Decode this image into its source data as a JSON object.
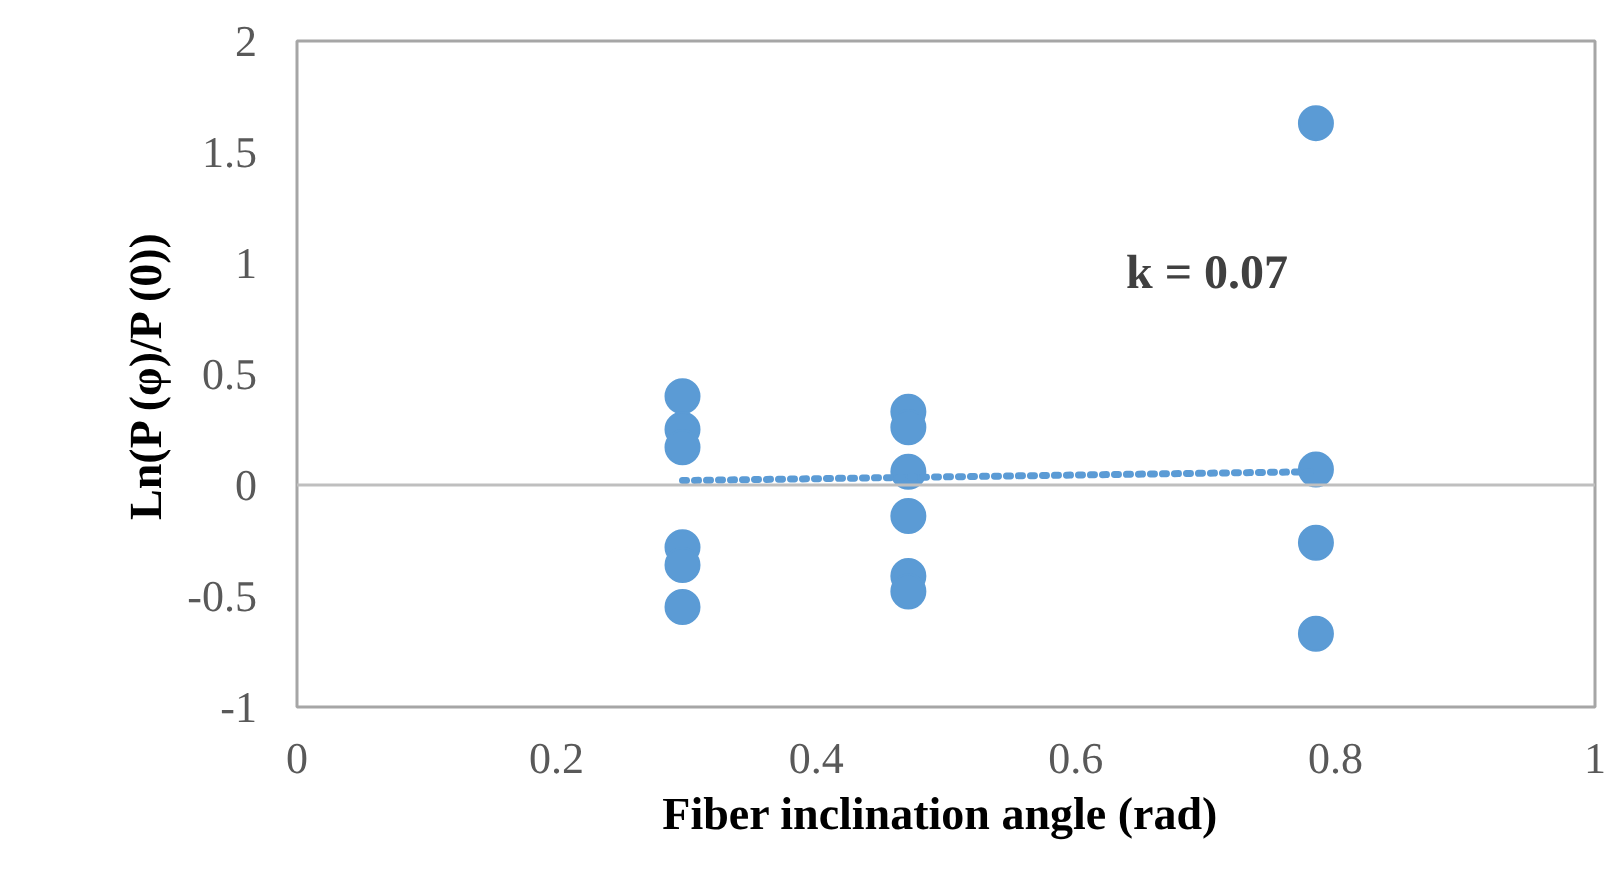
{
  "chart_data": {
    "type": "scatter",
    "xlabel": "Fiber inclination angle  (rad)",
    "ylabel": "Ln(P (φ)/P (0))",
    "xlim": [
      0,
      1
    ],
    "xticks": [
      0,
      0.2,
      0.4,
      0.6,
      0.8,
      1
    ],
    "ylim": [
      -1,
      2
    ],
    "yticks": [
      -1,
      -0.5,
      0,
      0.5,
      1,
      1.5,
      2
    ],
    "grid": false,
    "marker": "circle",
    "series": [
      {
        "color": "#5b9bd5",
        "x": [
          0.297,
          0.297,
          0.297,
          0.297,
          0.297,
          0.297,
          0.471,
          0.471,
          0.471,
          0.471,
          0.471,
          0.471,
          0.785,
          0.785,
          0.785,
          0.785
        ],
        "values": [
          0.4,
          0.25,
          0.17,
          -0.28,
          -0.36,
          -0.55,
          0.33,
          0.26,
          0.06,
          -0.14,
          -0.41,
          -0.48,
          1.63,
          0.07,
          -0.26,
          -0.67
        ]
      },
      {
        "type": "line",
        "color": "#5b9bd5",
        "line_style": "dotted",
        "marker": "none",
        "x": [
          0.297,
          0.785
        ],
        "values": [
          0.02,
          0.06
        ]
      }
    ],
    "ref_lines": [
      {
        "axis": "y",
        "value": 0,
        "color": "#bfbfbf"
      }
    ],
    "annotations": [
      "k = 0.07"
    ]
  }
}
